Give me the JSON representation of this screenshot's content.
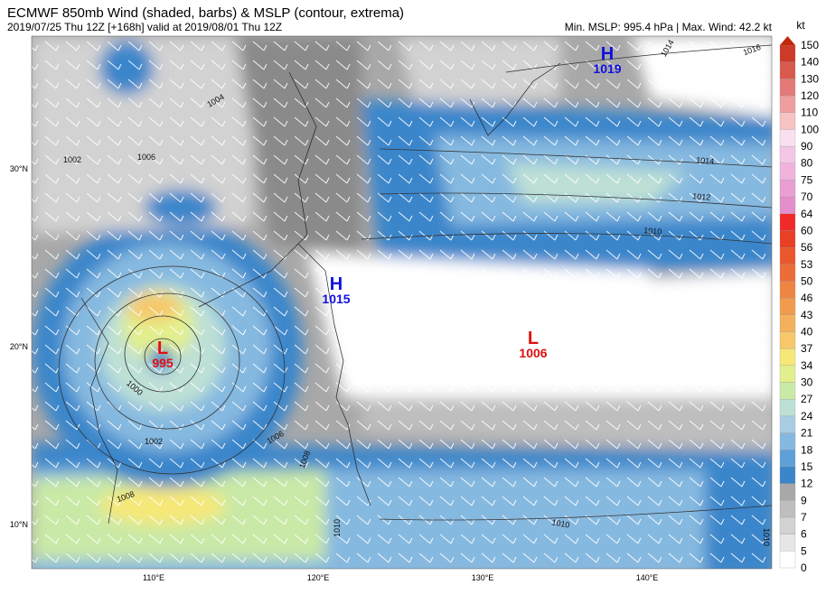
{
  "header": {
    "title": "ECMWF 850mb Wind (shaded, barbs) & MSLP (contour, extrema)",
    "subtitle": "2019/07/25 Thu 12Z [+168h] valid at 2019/08/01 Thu 12Z",
    "stats": "Min. MSLP: 995.4 hPa | Max. Wind: 42.2 kt"
  },
  "colorbar": {
    "unit": "kt",
    "levels": [
      0,
      5,
      6,
      7,
      9,
      12,
      15,
      18,
      21,
      24,
      27,
      30,
      34,
      37,
      40,
      43,
      46,
      50,
      53,
      56,
      60,
      64,
      70,
      75,
      80,
      90,
      100,
      110,
      120,
      130,
      140,
      150
    ],
    "colors": [
      "#ffffff",
      "#e6e6e6",
      "#d2d2d2",
      "#bebebe",
      "#a8a8a8",
      "#3b86cb",
      "#5ea1d8",
      "#86b9e0",
      "#a8cde3",
      "#bde0d6",
      "#c9e9a6",
      "#e3ef8d",
      "#f6e878",
      "#f6c86a",
      "#f4b15b",
      "#f19c4d",
      "#ee8543",
      "#ec6d37",
      "#ea562d",
      "#e93f25",
      "#f02a28",
      "#e48ecb",
      "#ea9fd2",
      "#efb3dc",
      "#f4c7e6",
      "#f9e0f1",
      "#f6c2c2",
      "#ee9e9e",
      "#e37a78",
      "#d85a4e",
      "#cd3a28"
    ],
    "over_color": "#c02a0a"
  },
  "lat_labels": [
    "30°N",
    "20°N",
    "10°N"
  ],
  "lon_labels": [
    "110°E",
    "120°E",
    "130°E",
    "140°E"
  ],
  "extrema": [
    {
      "symbol": "H",
      "value": "1019",
      "color": "#1010e0"
    },
    {
      "symbol": "H",
      "value": "1015",
      "color": "#1010e0"
    },
    {
      "symbol": "L",
      "value": "995",
      "color": "#e01010"
    },
    {
      "symbol": "L",
      "value": "1006",
      "color": "#e01010"
    }
  ],
  "contour_labels": [
    "1016",
    "1014",
    "1014",
    "1012",
    "1010",
    "1000",
    "1002",
    "1006",
    "1008",
    "1010",
    "1008",
    "1010",
    "1004",
    "1006",
    "1002",
    "1010"
  ]
}
